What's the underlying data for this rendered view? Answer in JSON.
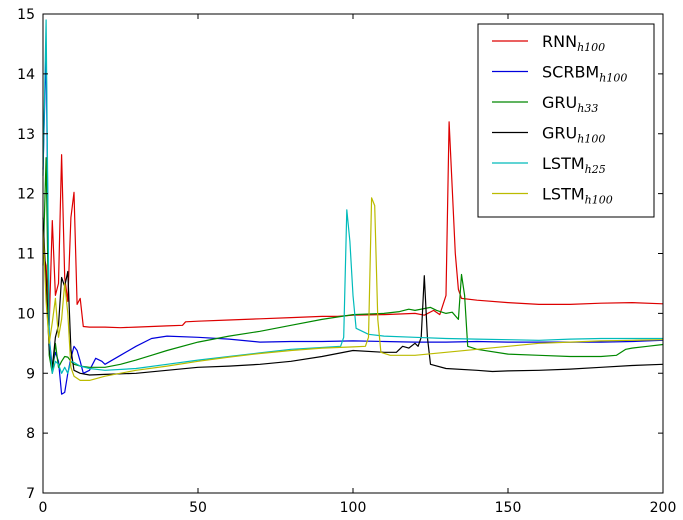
{
  "chart_data": {
    "type": "line",
    "title": "",
    "xlabel": "",
    "ylabel": "",
    "xlim": [
      0,
      200
    ],
    "ylim": [
      7,
      15
    ],
    "xticks": [
      0,
      50,
      100,
      150,
      200
    ],
    "yticks": [
      7,
      8,
      9,
      10,
      11,
      12,
      13,
      14,
      15
    ],
    "xtick_labels": [
      "0",
      "50",
      "100",
      "150",
      "200"
    ],
    "ytick_labels": [
      "7",
      "8",
      "9",
      "10",
      "11",
      "12",
      "13",
      "14",
      "15"
    ],
    "grid": false,
    "legend_position": "top-right",
    "series": [
      {
        "name": "RNN",
        "name_sub": "h100",
        "color": "#dd0000",
        "points": [
          [
            0,
            11.0
          ],
          [
            1,
            10.8
          ],
          [
            2,
            9.8
          ],
          [
            3,
            11.55
          ],
          [
            4,
            10.3
          ],
          [
            5,
            10.5
          ],
          [
            6,
            12.65
          ],
          [
            7,
            10.6
          ],
          [
            8,
            10.2
          ],
          [
            9,
            11.6
          ],
          [
            10,
            12.02
          ],
          [
            11,
            10.15
          ],
          [
            12,
            10.25
          ],
          [
            13,
            9.78
          ],
          [
            15,
            9.77
          ],
          [
            20,
            9.77
          ],
          [
            25,
            9.76
          ],
          [
            30,
            9.77
          ],
          [
            40,
            9.79
          ],
          [
            45,
            9.8
          ],
          [
            46,
            9.86
          ],
          [
            50,
            9.87
          ],
          [
            60,
            9.89
          ],
          [
            70,
            9.91
          ],
          [
            80,
            9.93
          ],
          [
            90,
            9.95
          ],
          [
            95,
            9.95
          ],
          [
            100,
            9.97
          ],
          [
            110,
            9.98
          ],
          [
            120,
            10.0
          ],
          [
            123,
            9.97
          ],
          [
            126,
            10.05
          ],
          [
            128,
            9.98
          ],
          [
            130,
            10.3
          ],
          [
            131,
            13.2
          ],
          [
            132,
            12.1
          ],
          [
            133,
            11.0
          ],
          [
            134,
            10.4
          ],
          [
            135,
            10.25
          ],
          [
            140,
            10.22
          ],
          [
            150,
            10.18
          ],
          [
            160,
            10.15
          ],
          [
            170,
            10.15
          ],
          [
            180,
            10.17
          ],
          [
            190,
            10.18
          ],
          [
            200,
            10.16
          ]
        ]
      },
      {
        "name": "SCRBM",
        "name_sub": "h100",
        "color": "#0000dd",
        "points": [
          [
            0,
            12.4
          ],
          [
            1,
            14.4
          ],
          [
            2,
            9.6
          ],
          [
            3,
            9.1
          ],
          [
            4,
            9.35
          ],
          [
            5,
            9.2
          ],
          [
            6,
            8.65
          ],
          [
            7,
            8.68
          ],
          [
            8,
            9.0
          ],
          [
            9,
            9.25
          ],
          [
            10,
            9.45
          ],
          [
            11,
            9.38
          ],
          [
            12,
            9.2
          ],
          [
            13,
            9.0
          ],
          [
            15,
            9.05
          ],
          [
            17,
            9.25
          ],
          [
            19,
            9.2
          ],
          [
            20,
            9.15
          ],
          [
            25,
            9.3
          ],
          [
            30,
            9.45
          ],
          [
            35,
            9.58
          ],
          [
            40,
            9.62
          ],
          [
            50,
            9.6
          ],
          [
            60,
            9.57
          ],
          [
            70,
            9.52
          ],
          [
            80,
            9.53
          ],
          [
            90,
            9.53
          ],
          [
            100,
            9.54
          ],
          [
            110,
            9.53
          ],
          [
            120,
            9.52
          ],
          [
            130,
            9.52
          ],
          [
            140,
            9.53
          ],
          [
            150,
            9.52
          ],
          [
            160,
            9.52
          ],
          [
            170,
            9.52
          ],
          [
            180,
            9.52
          ],
          [
            190,
            9.53
          ],
          [
            200,
            9.55
          ]
        ]
      },
      {
        "name": "GRU",
        "name_sub": "h33",
        "color": "#008800",
        "points": [
          [
            0,
            10.8
          ],
          [
            1,
            12.6
          ],
          [
            2,
            9.3
          ],
          [
            3,
            9.0
          ],
          [
            4,
            9.5
          ],
          [
            5,
            9.1
          ],
          [
            6,
            9.2
          ],
          [
            7,
            9.28
          ],
          [
            8,
            9.27
          ],
          [
            9,
            9.2
          ],
          [
            10,
            9.15
          ],
          [
            12,
            9.12
          ],
          [
            15,
            9.1
          ],
          [
            20,
            9.1
          ],
          [
            25,
            9.15
          ],
          [
            30,
            9.22
          ],
          [
            35,
            9.3
          ],
          [
            40,
            9.38
          ],
          [
            50,
            9.52
          ],
          [
            60,
            9.62
          ],
          [
            70,
            9.7
          ],
          [
            80,
            9.8
          ],
          [
            90,
            9.9
          ],
          [
            100,
            9.98
          ],
          [
            110,
            10.0
          ],
          [
            115,
            10.03
          ],
          [
            118,
            10.07
          ],
          [
            120,
            10.05
          ],
          [
            125,
            10.1
          ],
          [
            127,
            10.05
          ],
          [
            130,
            10.0
          ],
          [
            132,
            10.02
          ],
          [
            134,
            9.9
          ],
          [
            135,
            10.65
          ],
          [
            136,
            10.3
          ],
          [
            137,
            9.45
          ],
          [
            140,
            9.4
          ],
          [
            150,
            9.32
          ],
          [
            160,
            9.3
          ],
          [
            170,
            9.28
          ],
          [
            180,
            9.28
          ],
          [
            185,
            9.3
          ],
          [
            188,
            9.4
          ],
          [
            190,
            9.42
          ],
          [
            195,
            9.45
          ],
          [
            200,
            9.48
          ]
        ]
      },
      {
        "name": "GRU",
        "name_sub": "h100",
        "color": "#000000",
        "points": [
          [
            0,
            11.6
          ],
          [
            1,
            10.5
          ],
          [
            2,
            9.4
          ],
          [
            3,
            9.1
          ],
          [
            4,
            9.6
          ],
          [
            5,
            9.8
          ],
          [
            6,
            10.6
          ],
          [
            7,
            10.45
          ],
          [
            8,
            10.7
          ],
          [
            9,
            9.4
          ],
          [
            10,
            9.05
          ],
          [
            12,
            9.0
          ],
          [
            15,
            8.97
          ],
          [
            20,
            8.98
          ],
          [
            30,
            9.0
          ],
          [
            40,
            9.05
          ],
          [
            50,
            9.1
          ],
          [
            60,
            9.12
          ],
          [
            70,
            9.15
          ],
          [
            80,
            9.2
          ],
          [
            90,
            9.28
          ],
          [
            100,
            9.38
          ],
          [
            110,
            9.35
          ],
          [
            114,
            9.35
          ],
          [
            116,
            9.45
          ],
          [
            118,
            9.42
          ],
          [
            120,
            9.5
          ],
          [
            121,
            9.45
          ],
          [
            122,
            9.6
          ],
          [
            123,
            10.63
          ],
          [
            124,
            9.6
          ],
          [
            125,
            9.15
          ],
          [
            130,
            9.08
          ],
          [
            140,
            9.05
          ],
          [
            145,
            9.03
          ],
          [
            150,
            9.04
          ],
          [
            160,
            9.05
          ],
          [
            170,
            9.07
          ],
          [
            180,
            9.1
          ],
          [
            190,
            9.13
          ],
          [
            200,
            9.15
          ]
        ]
      },
      {
        "name": "LSTM",
        "name_sub": "h25",
        "color": "#00bbbb",
        "points": [
          [
            0,
            12.3
          ],
          [
            1,
            14.9
          ],
          [
            2,
            9.6
          ],
          [
            3,
            9.0
          ],
          [
            4,
            9.2
          ],
          [
            5,
            9.15
          ],
          [
            6,
            9.0
          ],
          [
            7,
            9.1
          ],
          [
            8,
            9.0
          ],
          [
            9,
            9.2
          ],
          [
            10,
            9.18
          ],
          [
            12,
            9.12
          ],
          [
            15,
            9.08
          ],
          [
            20,
            9.05
          ],
          [
            30,
            9.08
          ],
          [
            40,
            9.15
          ],
          [
            50,
            9.22
          ],
          [
            60,
            9.28
          ],
          [
            70,
            9.34
          ],
          [
            80,
            9.4
          ],
          [
            90,
            9.43
          ],
          [
            96,
            9.45
          ],
          [
            97,
            9.6
          ],
          [
            98,
            11.73
          ],
          [
            99,
            11.2
          ],
          [
            100,
            10.3
          ],
          [
            101,
            9.75
          ],
          [
            105,
            9.65
          ],
          [
            110,
            9.62
          ],
          [
            120,
            9.6
          ],
          [
            130,
            9.58
          ],
          [
            140,
            9.57
          ],
          [
            150,
            9.56
          ],
          [
            160,
            9.55
          ],
          [
            170,
            9.57
          ],
          [
            180,
            9.58
          ],
          [
            190,
            9.58
          ],
          [
            200,
            9.58
          ]
        ]
      },
      {
        "name": "LSTM",
        "name_sub": "h100",
        "color": "#bbbb00",
        "points": [
          [
            0,
            11.4
          ],
          [
            1,
            10.2
          ],
          [
            2,
            9.5
          ],
          [
            3,
            9.85
          ],
          [
            4,
            10.25
          ],
          [
            5,
            9.6
          ],
          [
            6,
            9.9
          ],
          [
            7,
            10.5
          ],
          [
            8,
            10.0
          ],
          [
            9,
            9.1
          ],
          [
            10,
            8.95
          ],
          [
            12,
            8.88
          ],
          [
            15,
            8.88
          ],
          [
            20,
            8.95
          ],
          [
            30,
            9.05
          ],
          [
            40,
            9.12
          ],
          [
            50,
            9.2
          ],
          [
            60,
            9.27
          ],
          [
            70,
            9.33
          ],
          [
            80,
            9.38
          ],
          [
            90,
            9.42
          ],
          [
            100,
            9.44
          ],
          [
            104,
            9.45
          ],
          [
            105,
            9.6
          ],
          [
            106,
            11.93
          ],
          [
            107,
            11.8
          ],
          [
            108,
            9.9
          ],
          [
            109,
            9.35
          ],
          [
            112,
            9.3
          ],
          [
            120,
            9.3
          ],
          [
            130,
            9.35
          ],
          [
            140,
            9.4
          ],
          [
            150,
            9.45
          ],
          [
            160,
            9.5
          ],
          [
            170,
            9.52
          ],
          [
            180,
            9.54
          ],
          [
            190,
            9.55
          ],
          [
            200,
            9.56
          ]
        ]
      }
    ]
  }
}
